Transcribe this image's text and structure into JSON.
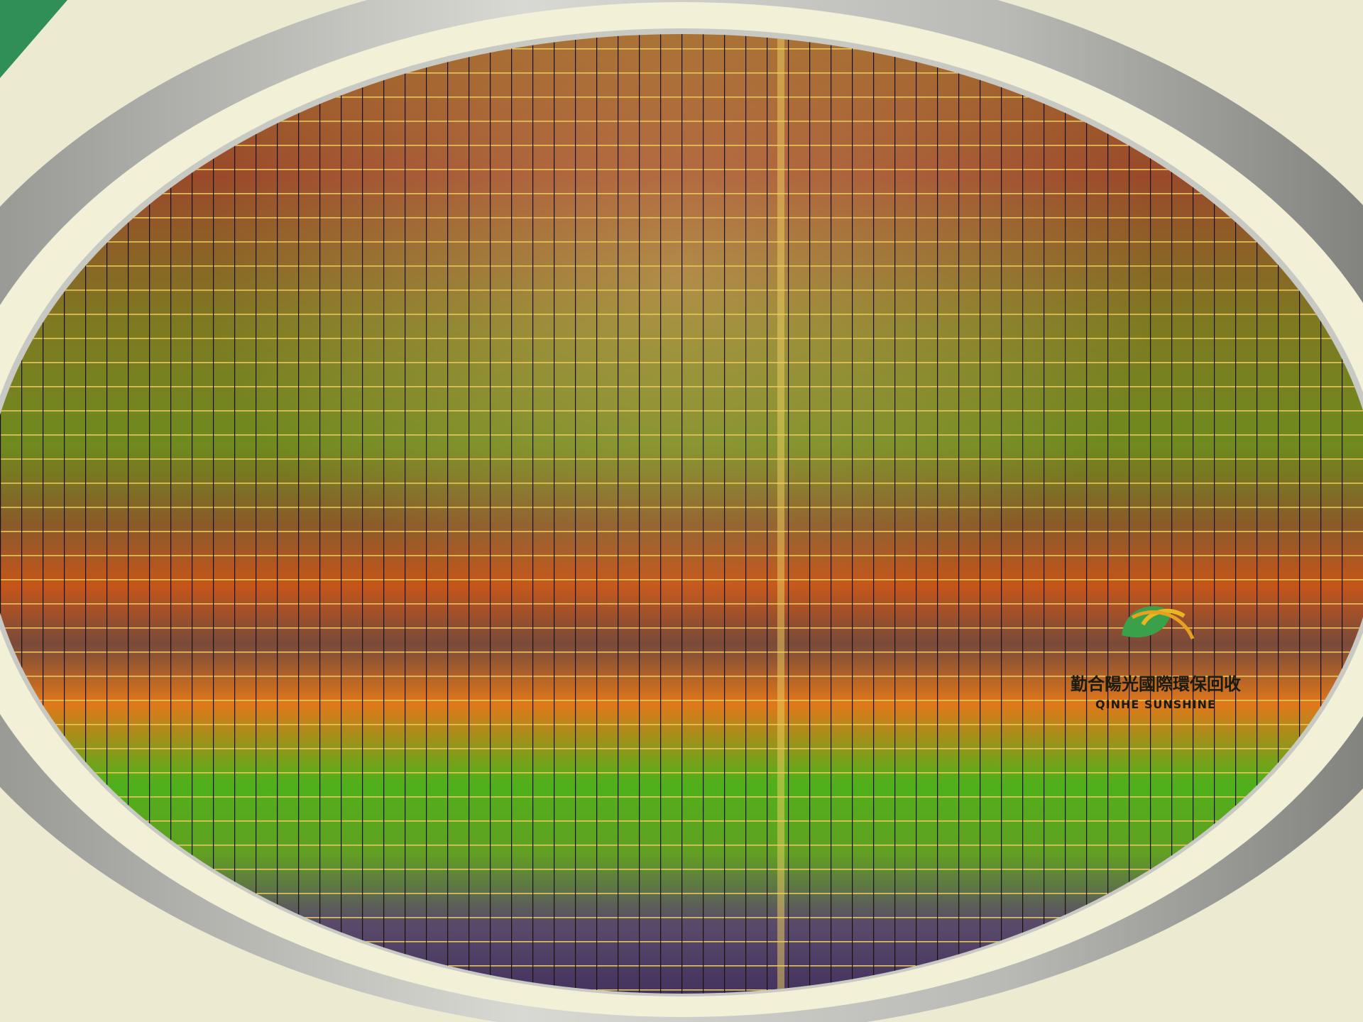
{
  "watermark": {
    "name_zh": "勤合陽光國際環保回收",
    "name_en": "QINHE SUNSHINE"
  }
}
